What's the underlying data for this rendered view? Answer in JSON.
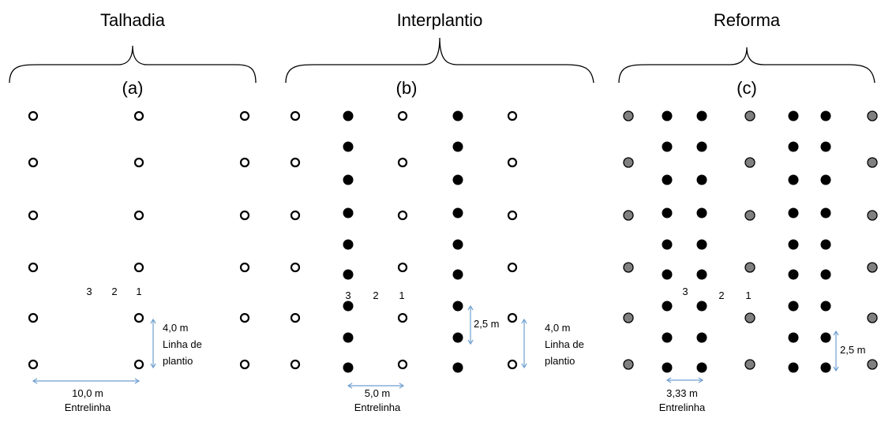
{
  "colors": {
    "open": "#ffffff",
    "black": "#000000",
    "gray": "#808080",
    "arrow": "#6f9fd0"
  },
  "panels": [
    {
      "title": "Talhadia",
      "label": "(a)",
      "row_numbers": [
        "3",
        "2",
        "1"
      ],
      "inter_row": {
        "value": "10,0 m",
        "name": "Entrelinha"
      },
      "in_row": {
        "value": "4,0 m",
        "lines": [
          "Linha de",
          "plantio"
        ]
      }
    },
    {
      "title": "Interplantio",
      "label": "(b)",
      "row_numbers": [
        "3",
        "2",
        "1"
      ],
      "inter_row": {
        "value": "5,0 m",
        "name": "Entrelinha"
      },
      "in_row_new": {
        "value": "2,5 m"
      },
      "in_row": {
        "value": "4,0 m",
        "lines": [
          "Linha de",
          "plantio"
        ]
      }
    },
    {
      "title": "Reforma",
      "label": "(c)",
      "row_numbers": [
        "3",
        "2",
        "1"
      ],
      "inter_row": {
        "value": "3,33 m",
        "name": "Entrelinha"
      },
      "in_row": {
        "value": "2,5 m"
      }
    }
  ]
}
